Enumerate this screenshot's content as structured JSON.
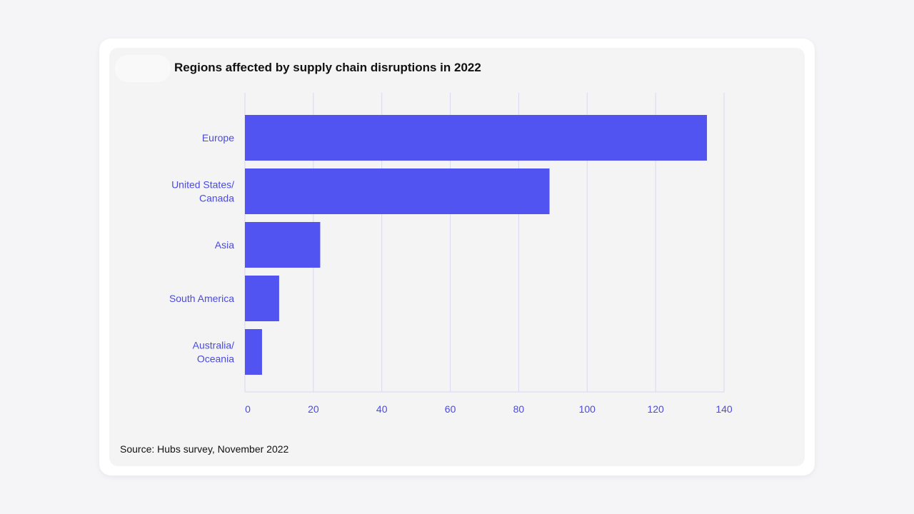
{
  "card": {
    "title": "Regions affected by supply chain disruptions in 2022",
    "source": "Source: Hubs survey, November 2022"
  },
  "colors": {
    "bar": "#5254f2",
    "label": "#4a4ae0",
    "grid": "#d8d8ef",
    "background": "#f4f4f5"
  },
  "chart_data": {
    "type": "bar",
    "orientation": "horizontal",
    "title": "Regions affected by supply chain disruptions in 2022",
    "xlabel": "",
    "ylabel": "",
    "categories": [
      [
        "Europe"
      ],
      [
        "United States/",
        "Canada"
      ],
      [
        "Asia"
      ],
      [
        "South America"
      ],
      [
        "Australia/",
        "Oceania"
      ]
    ],
    "values": [
      135,
      89,
      22,
      10,
      5
    ],
    "xlim": [
      0,
      140
    ],
    "xticks": [
      0,
      20,
      40,
      60,
      80,
      100,
      120,
      140
    ],
    "grid": true,
    "legend": "none"
  }
}
